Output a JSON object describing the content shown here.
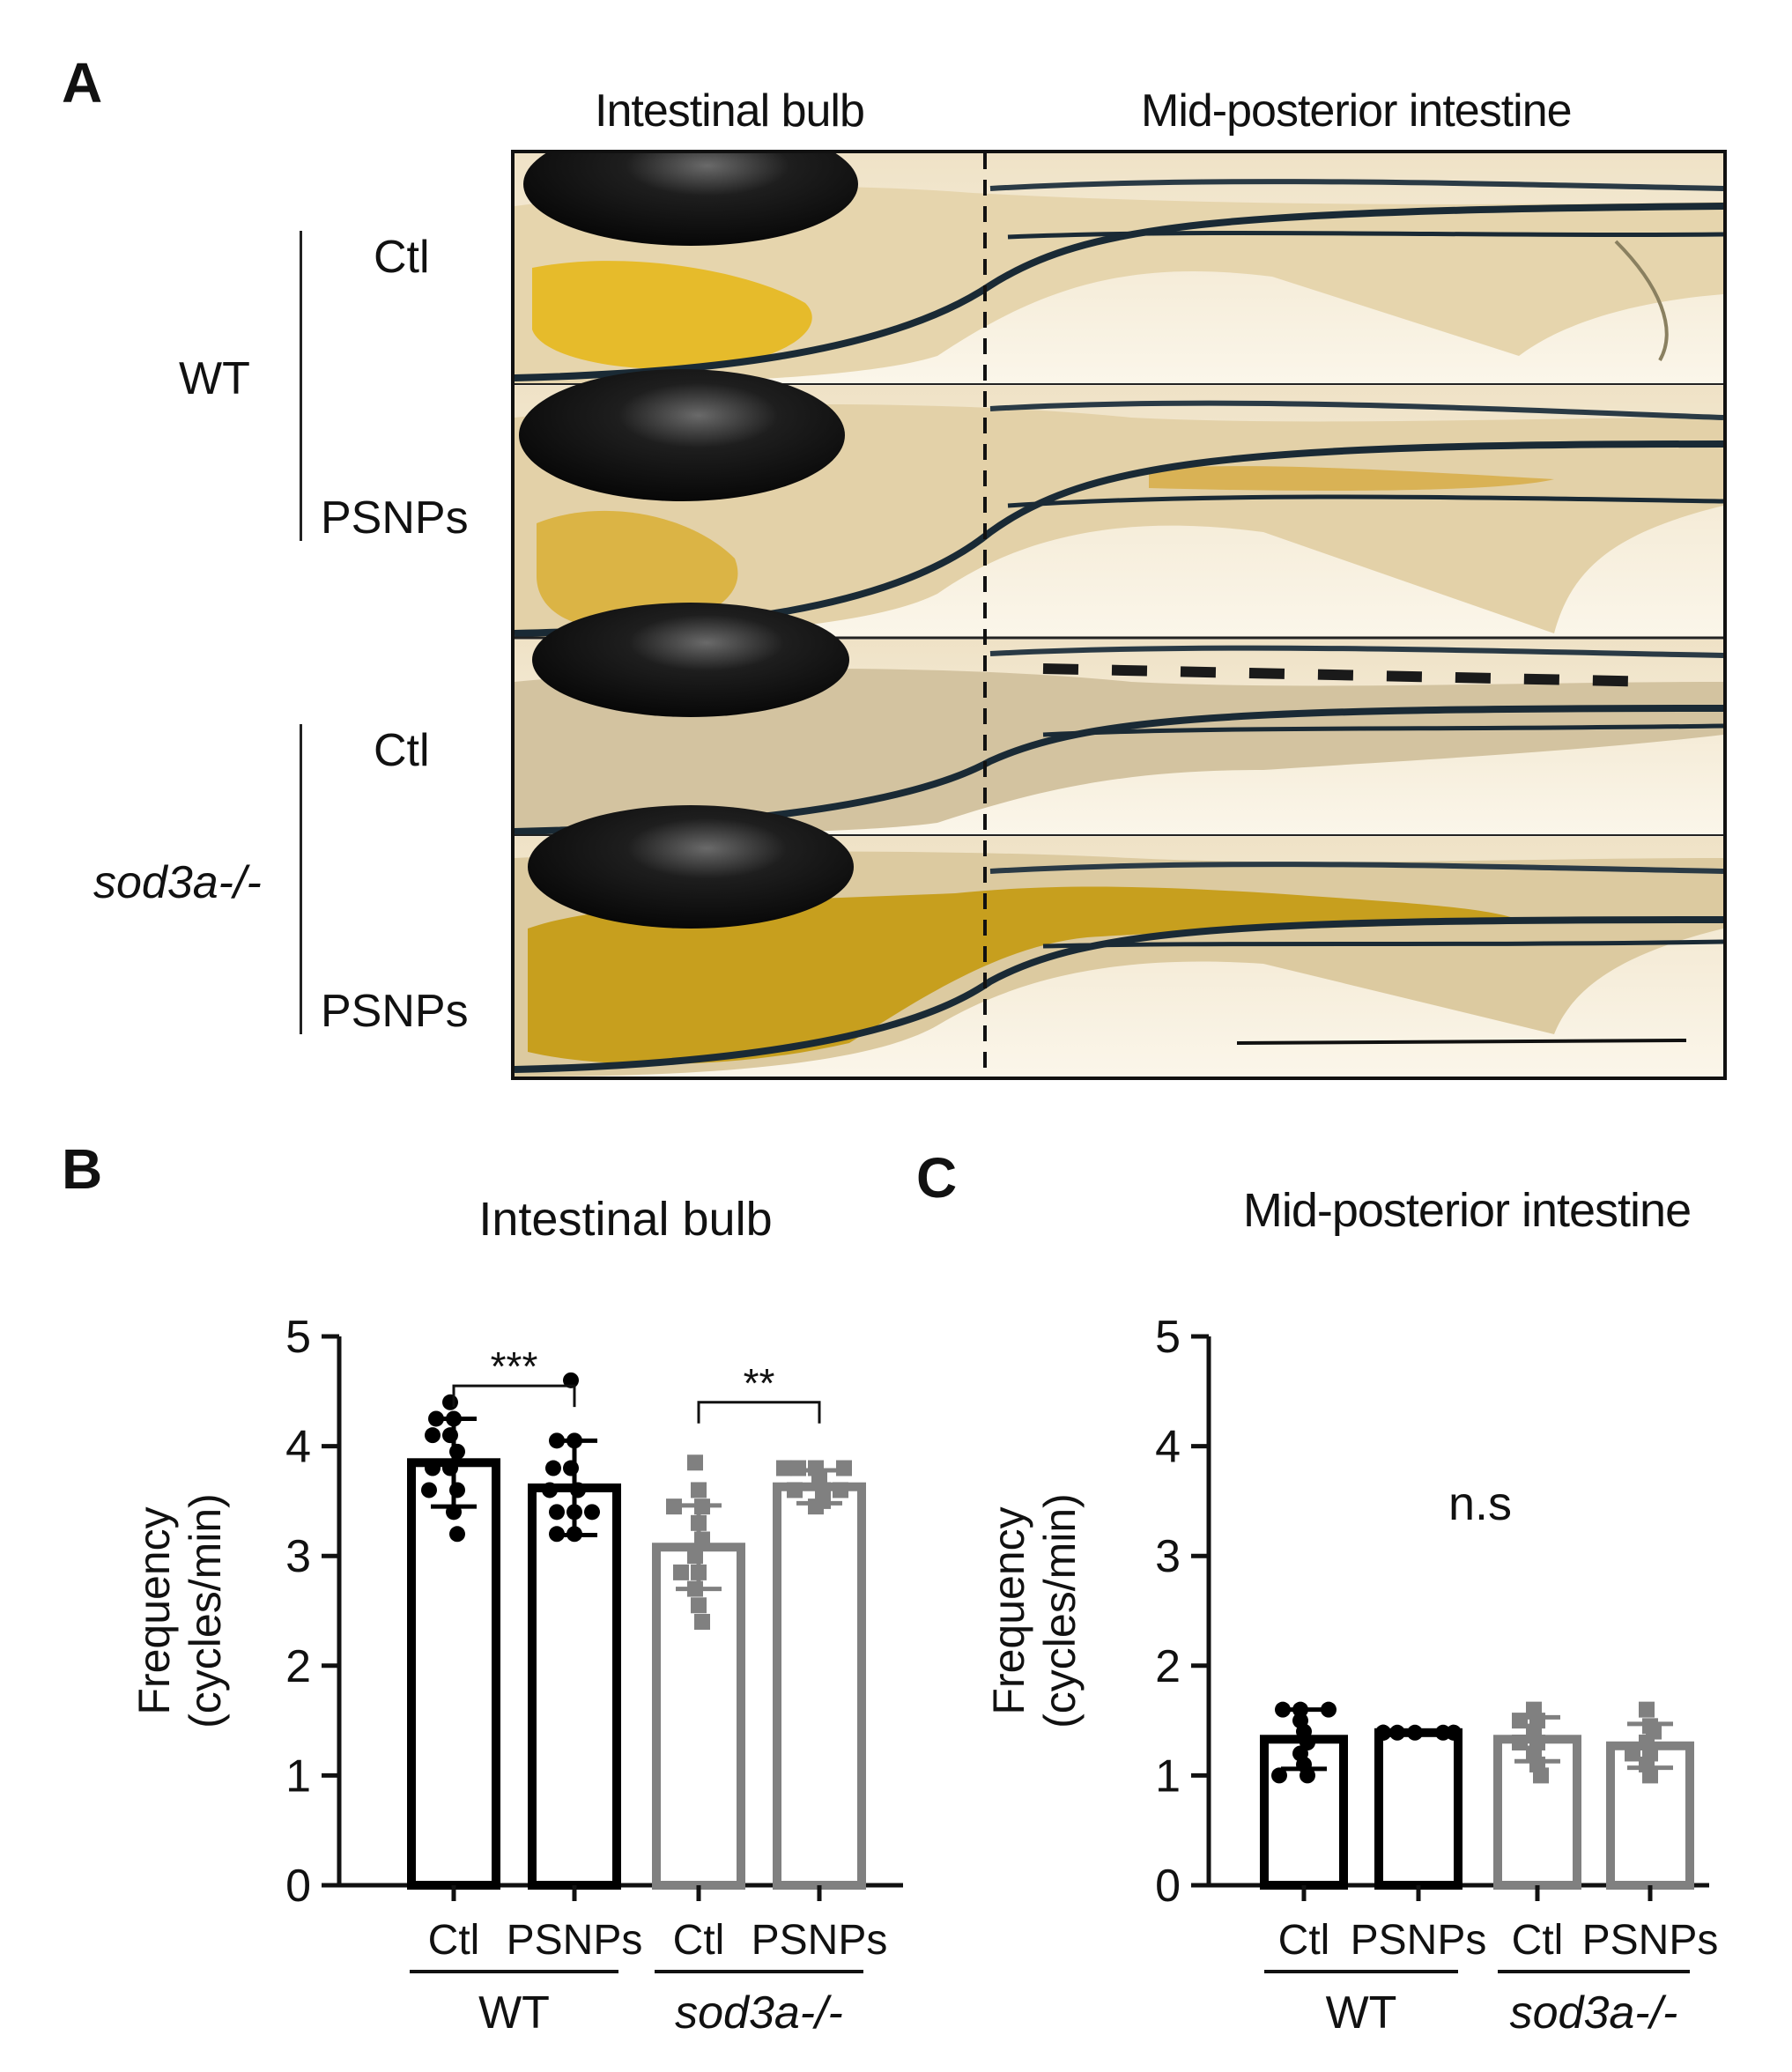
{
  "panel_a": {
    "letter": "A",
    "col_headers": [
      "Intestinal bulb",
      "Mid-posterior intestine"
    ],
    "groups": [
      {
        "name": "WT",
        "rows": [
          "Ctl",
          "PSNPs"
        ]
      },
      {
        "name": "sod3a-/-",
        "rows": [
          "Ctl",
          "PSNPs"
        ]
      }
    ],
    "fill_colors": {
      "ctl_wt": "#e6b820",
      "psnps_wt": "#d9b03a",
      "ctl_mut": "#b9a88a",
      "psnps_mut": "#c49a10"
    }
  },
  "chart_data": [
    {
      "panel": "B",
      "type": "bar",
      "title": "Intestinal bulb",
      "ylabel_line1": "Frequency",
      "ylabel_line2": "(cycles/min)",
      "ylim": [
        0,
        5
      ],
      "yticks": [
        "0",
        "1",
        "2",
        "3",
        "4",
        "5"
      ],
      "categories": [
        "Ctl",
        "PSNPs",
        "Ctl",
        "PSNPs"
      ],
      "groups": [
        {
          "name": "WT",
          "span": [
            0,
            1
          ]
        },
        {
          "name": "sod3a-/-",
          "span": [
            2,
            3
          ]
        }
      ],
      "series": [
        {
          "values": [
            3.85,
            3.62,
            3.08,
            3.63
          ],
          "sd": [
            0.4,
            0.43,
            0.38,
            0.15
          ]
        }
      ],
      "colors": [
        "#000000",
        "#000000",
        "#808080",
        "#808080"
      ],
      "markers": [
        "circle",
        "circle",
        "square",
        "square"
      ],
      "points": [
        [
          4.4,
          4.25,
          4.25,
          4.1,
          4.1,
          3.95,
          3.8,
          3.8,
          3.6,
          3.6,
          3.4,
          3.2
        ],
        [
          4.6,
          4.05,
          4.05,
          3.8,
          3.8,
          3.6,
          3.6,
          3.4,
          3.4,
          3.4,
          3.2,
          3.2
        ],
        [
          3.85,
          3.6,
          3.45,
          3.45,
          3.3,
          3.15,
          3.0,
          2.85,
          2.85,
          2.7,
          2.55,
          2.4
        ],
        [
          3.8,
          3.8,
          3.8,
          3.8,
          3.7,
          3.6,
          3.6,
          3.6,
          3.5,
          3.45
        ]
      ],
      "significance": [
        {
          "between": [
            0,
            1
          ],
          "label": "***",
          "at": 4.55
        },
        {
          "between": [
            2,
            3
          ],
          "label": "**",
          "at": 4.4
        }
      ]
    },
    {
      "panel": "C",
      "type": "bar",
      "title": "Mid-posterior intestine",
      "ylabel_line1": "Frequency",
      "ylabel_line2": "(cycles/min)",
      "ylim": [
        0,
        5
      ],
      "yticks": [
        "0",
        "1",
        "2",
        "3",
        "4",
        "5"
      ],
      "categories": [
        "Ctl",
        "PSNPs",
        "Ctl",
        "PSNPs"
      ],
      "groups": [
        {
          "name": "WT",
          "span": [
            0,
            1
          ]
        },
        {
          "name": "sod3a-/-",
          "span": [
            2,
            3
          ]
        }
      ],
      "series": [
        {
          "values": [
            1.33,
            1.39,
            1.33,
            1.27
          ],
          "sd": [
            0.27,
            0.01,
            0.2,
            0.2
          ]
        }
      ],
      "colors": [
        "#000000",
        "#000000",
        "#808080",
        "#808080"
      ],
      "markers": [
        "circle",
        "circle",
        "square",
        "square"
      ],
      "points": [
        [
          1.6,
          1.6,
          1.6,
          1.5,
          1.4,
          1.3,
          1.2,
          1.1,
          1.0,
          1.0
        ],
        [
          1.39,
          1.39,
          1.39,
          1.39,
          1.39,
          1.39,
          1.39,
          1.39
        ],
        [
          1.6,
          1.5,
          1.5,
          1.4,
          1.3,
          1.3,
          1.2,
          1.1,
          1.0
        ],
        [
          1.6,
          1.45,
          1.4,
          1.3,
          1.2,
          1.2,
          1.1,
          1.0
        ]
      ],
      "annotation": "n.s"
    }
  ]
}
